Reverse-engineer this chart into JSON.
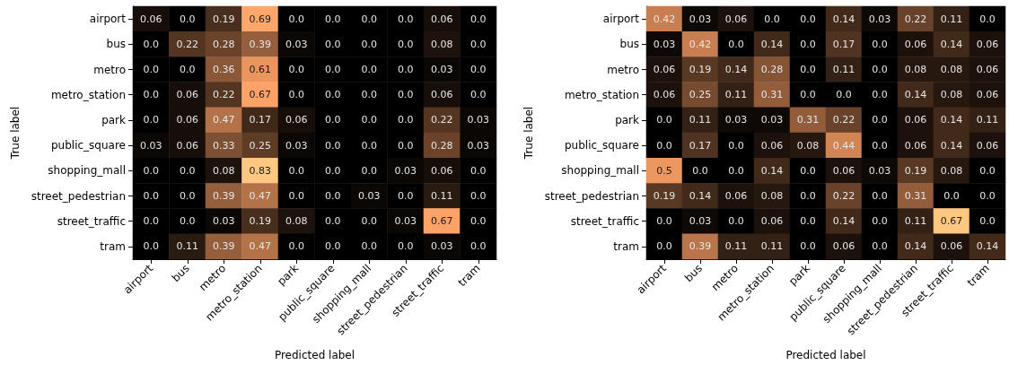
{
  "chart_data": [
    {
      "type": "heatmap",
      "xlabel": "Predicted label",
      "ylabel": "True label",
      "categories": [
        "airport",
        "bus",
        "metro",
        "metro_station",
        "park",
        "public_square",
        "shopping_mall",
        "street_pedestrian",
        "street_traffic",
        "tram"
      ],
      "y_categories": [
        "airport",
        "bus",
        "metro",
        "metro_station",
        "park",
        "public_square",
        "shopping_mall",
        "street_pedestrian",
        "street_traffic",
        "tram"
      ],
      "cells": [
        [
          0.06,
          0,
          0.19,
          0.69,
          0,
          0,
          0,
          0,
          0.06,
          0
        ],
        [
          0,
          0.22,
          0.28,
          0.39,
          0.03,
          0,
          0,
          0,
          0.08,
          0
        ],
        [
          0,
          0,
          0.36,
          0.61,
          0,
          0,
          0,
          0,
          0.03,
          0
        ],
        [
          0,
          0.06,
          0.22,
          0.67,
          0,
          0,
          0,
          0,
          0.06,
          0
        ],
        [
          0,
          0.06,
          0.47,
          0.17,
          0.06,
          0,
          0,
          0,
          0.22,
          0.03
        ],
        [
          0.03,
          0.06,
          0.33,
          0.25,
          0.03,
          0,
          0,
          0,
          0.28,
          0.03
        ],
        [
          0,
          0,
          0.08,
          0.83,
          0,
          0,
          0,
          0.03,
          0.06,
          0
        ],
        [
          0,
          0,
          0.39,
          0.47,
          0,
          0,
          0.03,
          0,
          0.11,
          0
        ],
        [
          0,
          0,
          0.03,
          0.19,
          0.08,
          0,
          0,
          0.03,
          0.67,
          0
        ],
        [
          0,
          0.11,
          0.39,
          0.47,
          0,
          0,
          0,
          0,
          0.03,
          0
        ]
      ],
      "cell_labels": [
        [
          "0.06",
          "0.0",
          "0.19",
          "0.69",
          "0.0",
          "0.0",
          "0.0",
          "0.0",
          "0.06",
          "0.0"
        ],
        [
          "0.0",
          "0.22",
          "0.28",
          "0.39",
          "0.03",
          "0.0",
          "0.0",
          "0.0",
          "0.08",
          "0.0"
        ],
        [
          "0.0",
          "0.0",
          "0.36",
          "0.61",
          "0.0",
          "0.0",
          "0.0",
          "0.0",
          "0.03",
          "0.0"
        ],
        [
          "0.0",
          "0.06",
          "0.22",
          "0.67",
          "0.0",
          "0.0",
          "0.0",
          "0.0",
          "0.06",
          "0.0"
        ],
        [
          "0.0",
          "0.06",
          "0.47",
          "0.17",
          "0.06",
          "0.0",
          "0.0",
          "0.0",
          "0.22",
          "0.03"
        ],
        [
          "0.03",
          "0.06",
          "0.33",
          "0.25",
          "0.03",
          "0.0",
          "0.0",
          "0.0",
          "0.28",
          "0.03"
        ],
        [
          "0.0",
          "0.0",
          "0.08",
          "0.83",
          "0.0",
          "0.0",
          "0.0",
          "0.03",
          "0.06",
          "0.0"
        ],
        [
          "0.0",
          "0.0",
          "0.39",
          "0.47",
          "0.0",
          "0.0",
          "0.03",
          "0.0",
          "0.11",
          "0.0"
        ],
        [
          "0.0",
          "0.0",
          "0.03",
          "0.19",
          "0.08",
          "0.0",
          "0.0",
          "0.03",
          "0.67",
          "0.0"
        ],
        [
          "0.0",
          "0.11",
          "0.39",
          "0.47",
          "0.0",
          "0.0",
          "0.0",
          "0.0",
          "0.03",
          "0.0"
        ]
      ]
    },
    {
      "type": "heatmap",
      "xlabel": "Predicted label",
      "ylabel": "True label",
      "categories": [
        "airport",
        "bus",
        "metro",
        "metro_station",
        "park",
        "public_square",
        "shopping_mall",
        "street_pedestrian",
        "street_traffic",
        "tram"
      ],
      "y_categories": [
        "airport",
        "bus",
        "metro",
        "metro_station",
        "park",
        "public_square",
        "shopping_mall",
        "street_pedestrian",
        "street_traffic",
        "tram"
      ],
      "cells": [
        [
          0.42,
          0.03,
          0.06,
          0,
          0,
          0.14,
          0.03,
          0.22,
          0.11,
          0
        ],
        [
          0.03,
          0.42,
          0,
          0.14,
          0,
          0.17,
          0,
          0.06,
          0.14,
          0.06
        ],
        [
          0.06,
          0.19,
          0.14,
          0.28,
          0,
          0.11,
          0,
          0.08,
          0.08,
          0.06
        ],
        [
          0.06,
          0.25,
          0.11,
          0.31,
          0,
          0,
          0,
          0.14,
          0.08,
          0.06
        ],
        [
          0,
          0.11,
          0.03,
          0.03,
          0.31,
          0.22,
          0,
          0.06,
          0.14,
          0.11
        ],
        [
          0,
          0.17,
          0,
          0.06,
          0.08,
          0.44,
          0,
          0.06,
          0.14,
          0.06
        ],
        [
          0.5,
          0,
          0,
          0.14,
          0,
          0.06,
          0.03,
          0.19,
          0.08,
          0
        ],
        [
          0.19,
          0.14,
          0.06,
          0.08,
          0,
          0.22,
          0,
          0.31,
          0,
          0
        ],
        [
          0,
          0.03,
          0,
          0.06,
          0,
          0.14,
          0,
          0.11,
          0.67,
          0
        ],
        [
          0,
          0.39,
          0.11,
          0.11,
          0,
          0.06,
          0,
          0.14,
          0.06,
          0.14
        ]
      ],
      "cell_labels": [
        [
          "0.42",
          "0.03",
          "0.06",
          "0.0",
          "0.0",
          "0.14",
          "0.03",
          "0.22",
          "0.11",
          "0.0"
        ],
        [
          "0.03",
          "0.42",
          "0.0",
          "0.14",
          "0.0",
          "0.17",
          "0.0",
          "0.06",
          "0.14",
          "0.06"
        ],
        [
          "0.06",
          "0.19",
          "0.14",
          "0.28",
          "0.0",
          "0.11",
          "0.0",
          "0.08",
          "0.08",
          "0.06"
        ],
        [
          "0.06",
          "0.25",
          "0.11",
          "0.31",
          "0.0",
          "0.0",
          "0.0",
          "0.14",
          "0.08",
          "0.06"
        ],
        [
          "0.0",
          "0.11",
          "0.03",
          "0.03",
          "0.31",
          "0.22",
          "0.0",
          "0.06",
          "0.14",
          "0.11"
        ],
        [
          "0.0",
          "0.17",
          "0.0",
          "0.06",
          "0.08",
          "0.44",
          "0.0",
          "0.06",
          "0.14",
          "0.06"
        ],
        [
          "0.5",
          "0.0",
          "0.0",
          "0.14",
          "0.0",
          "0.06",
          "0.03",
          "0.19",
          "0.08",
          "0.0"
        ],
        [
          "0.19",
          "0.14",
          "0.06",
          "0.08",
          "0.0",
          "0.22",
          "0.0",
          "0.31",
          "0.0",
          "0.0"
        ],
        [
          "0.0",
          "0.03",
          "0.0",
          "0.06",
          "0.0",
          "0.14",
          "0.0",
          "0.11",
          "0.67",
          "0.0"
        ],
        [
          "0.0",
          "0.39",
          "0.11",
          "0.11",
          "0.0",
          "0.06",
          "0.0",
          "0.14",
          "0.06",
          "0.14"
        ]
      ]
    }
  ]
}
